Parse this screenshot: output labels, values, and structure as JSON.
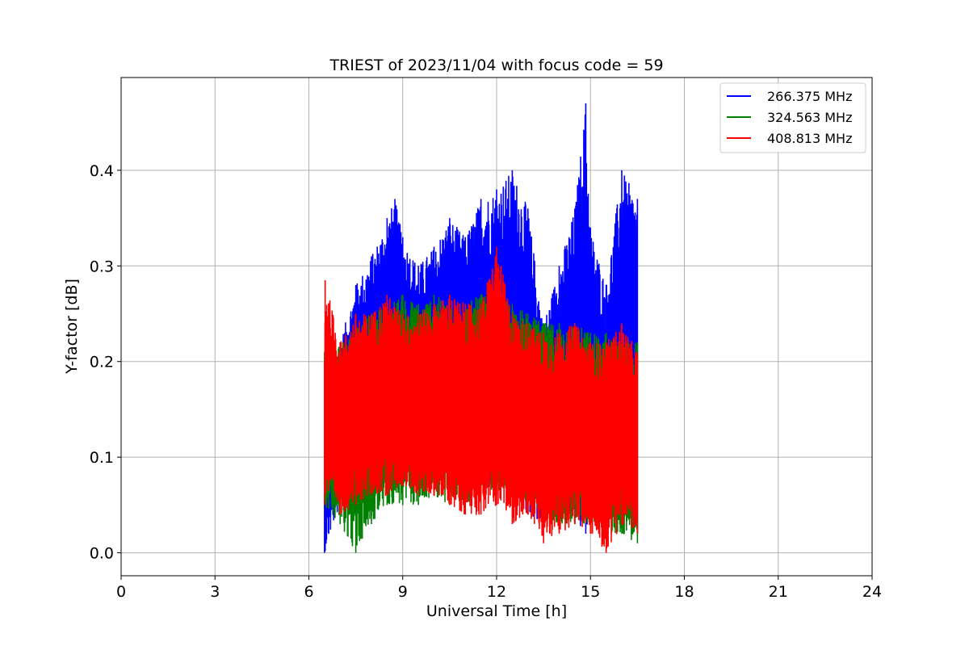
{
  "chart_data": {
    "type": "line",
    "title": "TRIEST of 2023/11/04 with focus code = 59",
    "xlabel": "Universal Time [h]",
    "ylabel": "Y-factor [dB]",
    "xlim": [
      0,
      24
    ],
    "ylim": [
      -0.024,
      0.497
    ],
    "xticks": [
      0,
      3,
      6,
      9,
      12,
      15,
      18,
      21,
      24
    ],
    "xtick_labels": [
      "0",
      "3",
      "6",
      "9",
      "12",
      "15",
      "18",
      "21",
      "24"
    ],
    "yticks": [
      0.0,
      0.1,
      0.2,
      0.3,
      0.4
    ],
    "ytick_labels": [
      "0.0",
      "0.1",
      "0.2",
      "0.3",
      "0.4"
    ],
    "grid": true,
    "legend_position": "top-right",
    "colors": {
      "blue": "#0000ff",
      "green": "#008000",
      "red": "#ff0000"
    },
    "series": [
      {
        "name": "266.375 MHz",
        "color": "#0000ff",
        "x": [
          6.5,
          7.0,
          7.5,
          8.0,
          8.5,
          8.75,
          9.0,
          9.5,
          10.0,
          10.5,
          11.0,
          11.5,
          12.0,
          12.5,
          13.0,
          13.5,
          14.0,
          14.5,
          14.85,
          15.0,
          15.5,
          16.0,
          16.5
        ],
        "upper": [
          0.2,
          0.22,
          0.28,
          0.31,
          0.35,
          0.37,
          0.33,
          0.3,
          0.32,
          0.35,
          0.33,
          0.37,
          0.38,
          0.4,
          0.36,
          0.24,
          0.3,
          0.36,
          0.47,
          0.34,
          0.28,
          0.4,
          0.37
        ],
        "lower": [
          0.0,
          0.05,
          0.07,
          0.06,
          0.08,
          0.08,
          0.08,
          0.09,
          0.07,
          0.08,
          0.07,
          0.06,
          0.07,
          0.06,
          0.04,
          0.03,
          0.04,
          0.03,
          0.02,
          0.03,
          0.04,
          0.03,
          0.02
        ]
      },
      {
        "name": "324.563 MHz",
        "color": "#008000",
        "x": [
          6.5,
          7.0,
          7.5,
          8.0,
          8.5,
          9.0,
          9.5,
          10.0,
          10.5,
          11.0,
          11.5,
          12.0,
          12.5,
          13.0,
          13.5,
          14.0,
          14.5,
          15.0,
          15.5,
          16.0,
          16.5
        ],
        "upper": [
          0.21,
          0.22,
          0.24,
          0.25,
          0.26,
          0.27,
          0.26,
          0.27,
          0.26,
          0.26,
          0.27,
          0.27,
          0.26,
          0.25,
          0.24,
          0.24,
          0.24,
          0.23,
          0.23,
          0.22,
          0.22
        ],
        "lower": [
          0.05,
          0.03,
          0.0,
          0.03,
          0.05,
          0.05,
          0.05,
          0.06,
          0.05,
          0.05,
          0.06,
          0.06,
          0.07,
          0.05,
          0.04,
          0.03,
          0.03,
          0.03,
          0.02,
          0.02,
          0.01
        ]
      },
      {
        "name": "408.813 MHz",
        "color": "#ff0000",
        "x": [
          6.5,
          6.52,
          7.0,
          7.5,
          8.0,
          8.5,
          9.0,
          9.5,
          10.0,
          10.5,
          11.0,
          11.5,
          12.0,
          12.5,
          13.0,
          13.5,
          14.0,
          14.5,
          15.0,
          15.5,
          16.0,
          16.5
        ],
        "upper": [
          0.2,
          0.285,
          0.22,
          0.25,
          0.25,
          0.27,
          0.25,
          0.25,
          0.26,
          0.27,
          0.26,
          0.26,
          0.32,
          0.25,
          0.24,
          0.23,
          0.23,
          0.24,
          0.22,
          0.22,
          0.24,
          0.21
        ],
        "lower": [
          0.05,
          0.06,
          0.04,
          0.05,
          0.06,
          0.06,
          0.07,
          0.06,
          0.06,
          0.05,
          0.04,
          0.04,
          0.05,
          0.03,
          0.04,
          0.01,
          0.02,
          0.03,
          0.02,
          0.0,
          0.03,
          0.02
        ]
      }
    ]
  }
}
